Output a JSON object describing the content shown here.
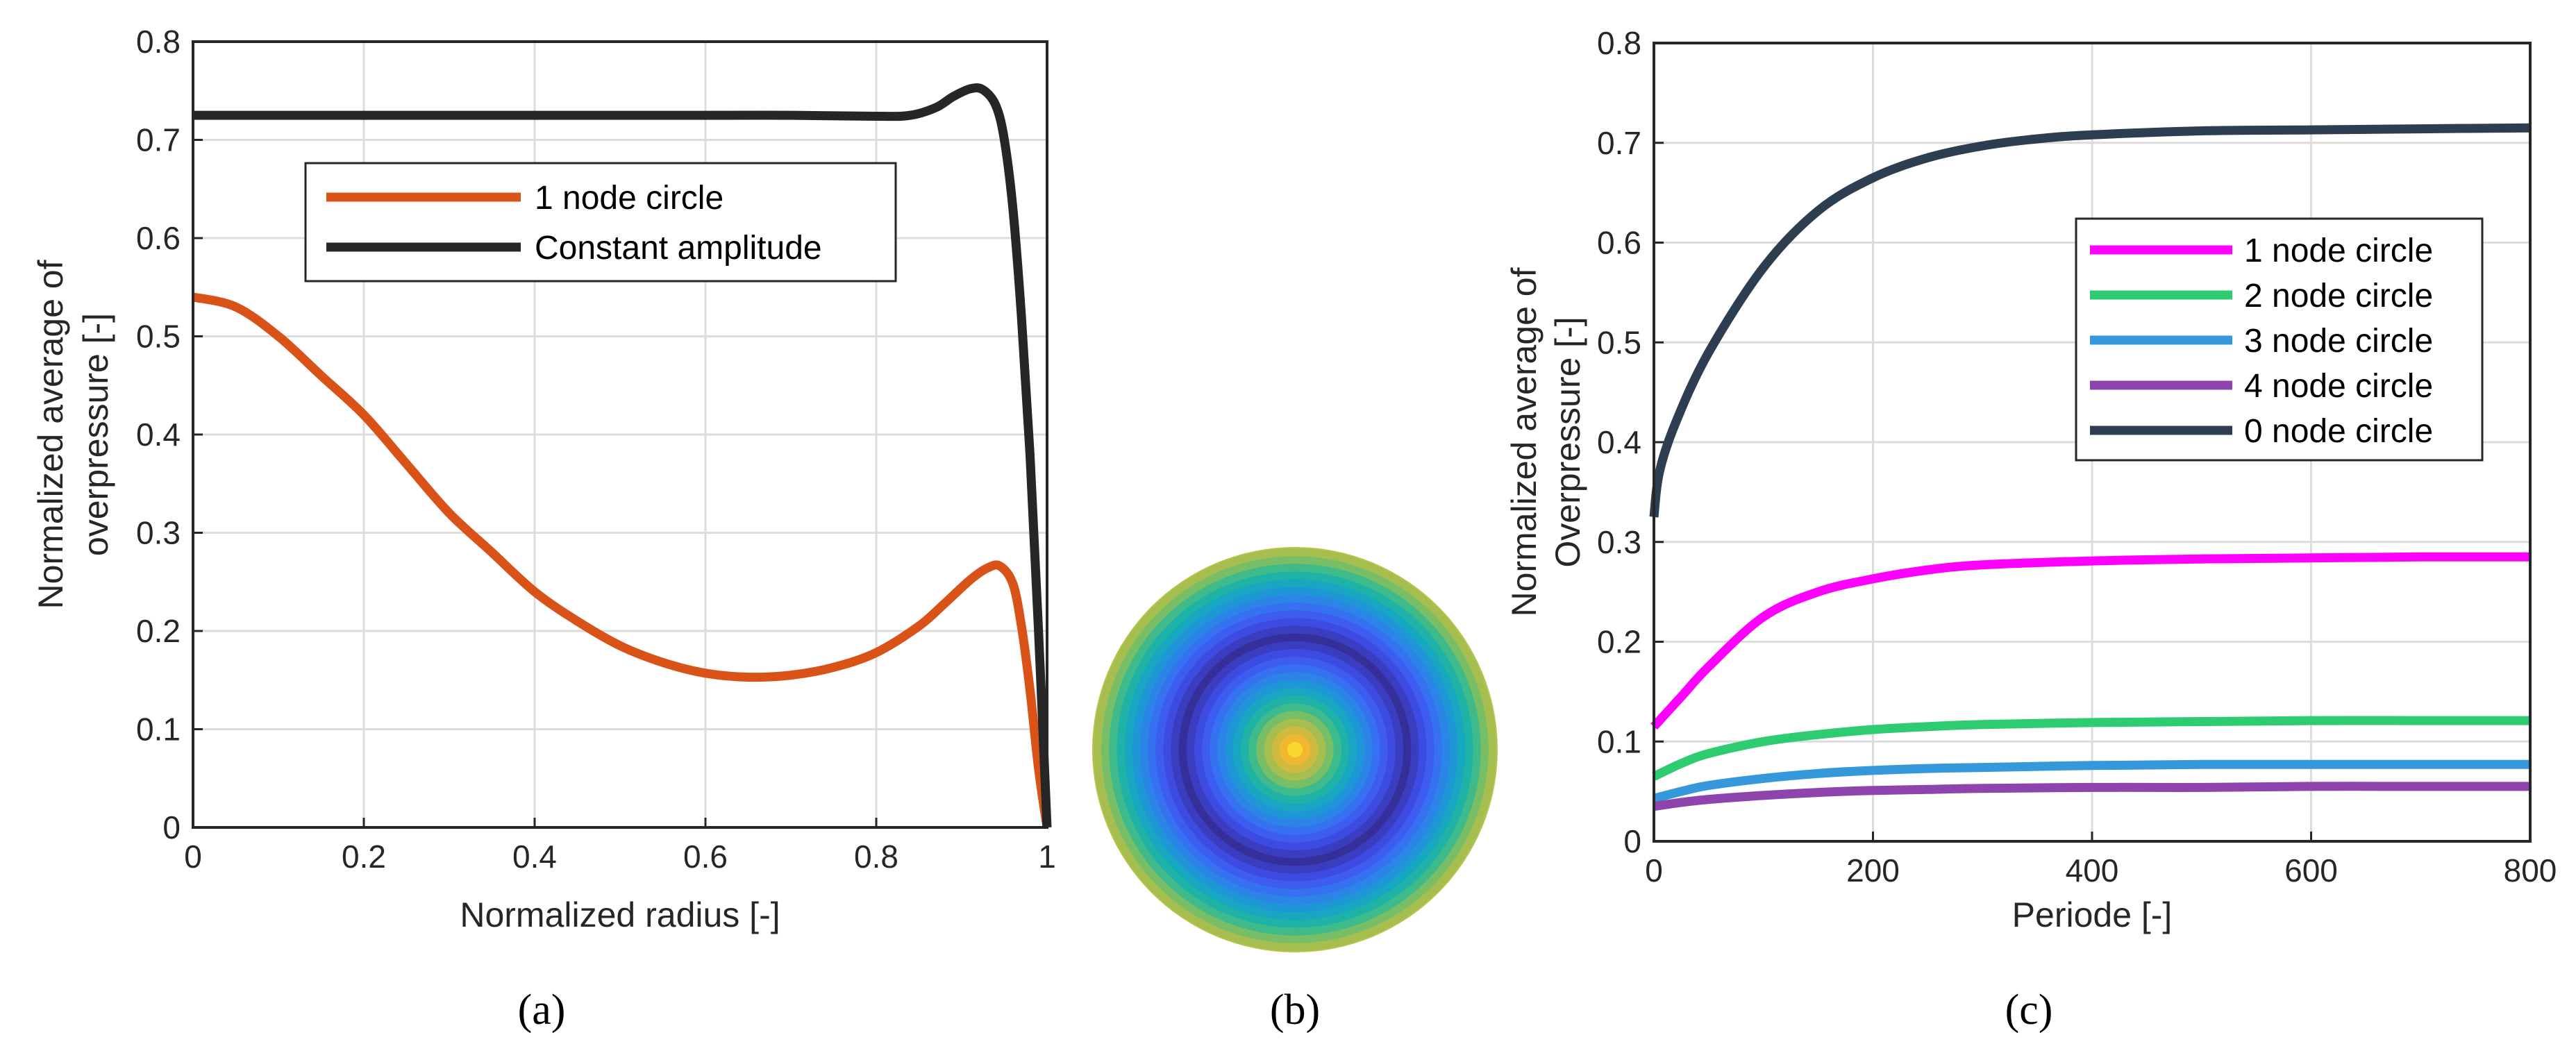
{
  "colors": {
    "one_node_a": "#D95319",
    "constant": "#262626",
    "one_node_c": "#FF00FF",
    "two_node": "#2ECC71",
    "three_node": "#3498DB",
    "four_node": "#8E44AD",
    "zero_node": "#2C3E50"
  },
  "panel_labels": [
    "(a)",
    "(b)",
    "(c)"
  ],
  "chart_data": [
    {
      "type": "line",
      "xlabel": "Normalized radius [-]",
      "ylabel_lines": [
        "Normalized average of",
        "overpressure [-]"
      ],
      "xlim": [
        0,
        1
      ],
      "ylim": [
        0,
        0.8
      ],
      "xticks": [
        "0",
        "0.2",
        "0.4",
        "0.6",
        "0.8",
        "1"
      ],
      "yticks": [
        "0",
        "0.1",
        "0.2",
        "0.3",
        "0.4",
        "0.5",
        "0.6",
        "0.7",
        "0.8"
      ],
      "grid": true,
      "legend_position": "upper-center",
      "series": [
        {
          "name": "1 node circle",
          "color": "#D95319",
          "x": [
            0,
            0.05,
            0.1,
            0.15,
            0.2,
            0.25,
            0.3,
            0.35,
            0.4,
            0.45,
            0.5,
            0.55,
            0.6,
            0.65,
            0.7,
            0.75,
            0.8,
            0.85,
            0.88,
            0.91,
            0.93,
            0.945,
            0.96,
            0.97,
            0.98,
            0.99,
            1.0
          ],
          "y": [
            0.54,
            0.53,
            0.5,
            0.46,
            0.42,
            0.37,
            0.32,
            0.28,
            0.24,
            0.21,
            0.185,
            0.168,
            0.157,
            0.153,
            0.155,
            0.163,
            0.178,
            0.205,
            0.228,
            0.252,
            0.264,
            0.266,
            0.248,
            0.205,
            0.14,
            0.06,
            0.0
          ]
        },
        {
          "name": "Constant amplitude",
          "color": "#262626",
          "x": [
            0,
            0.2,
            0.4,
            0.6,
            0.7,
            0.8,
            0.84,
            0.87,
            0.89,
            0.91,
            0.925,
            0.94,
            0.95,
            0.96,
            0.97,
            0.98,
            0.99,
            1.0
          ],
          "y": [
            0.725,
            0.725,
            0.725,
            0.725,
            0.725,
            0.724,
            0.725,
            0.733,
            0.744,
            0.752,
            0.751,
            0.735,
            0.7,
            0.63,
            0.52,
            0.38,
            0.2,
            0.0
          ]
        }
      ]
    },
    {
      "type": "heatmap",
      "description_visible": "Circular contour map with concentric rings",
      "ring_colors": [
        "#F9D72C",
        "#F1B72E",
        "#CDBA3E",
        "#A6BE4F",
        "#78BE66",
        "#3FBA8A",
        "#1FB3A8",
        "#17A7C1",
        "#1F97D6",
        "#2B85E6",
        "#3571F0",
        "#3C5DF0",
        "#3E4BE0",
        "#3A3DBF",
        "#352F9A",
        "#3A3DBF",
        "#3E4BE0",
        "#3C5DF0",
        "#3571F0",
        "#2B85E6",
        "#1F97D6",
        "#17A7C1",
        "#1FB3A8",
        "#3FBA8A",
        "#78BE66",
        "#A6BE4F"
      ]
    },
    {
      "type": "line",
      "xlabel": "Periode [-]",
      "ylabel_lines": [
        "Normalized average of",
        "Overpressure [-]"
      ],
      "xlim": [
        0,
        800
      ],
      "ylim": [
        0,
        0.8
      ],
      "xticks": [
        "0",
        "200",
        "400",
        "600",
        "800"
      ],
      "yticks": [
        "0",
        "0.1",
        "0.2",
        "0.3",
        "0.4",
        "0.5",
        "0.6",
        "0.7",
        "0.8"
      ],
      "grid": true,
      "legend_position": "right",
      "series": [
        {
          "name": "1 node circle",
          "color": "#FF00FF",
          "x": [
            0,
            25,
            50,
            100,
            150,
            200,
            250,
            300,
            400,
            500,
            600,
            700,
            800
          ],
          "y": [
            0.115,
            0.145,
            0.175,
            0.225,
            0.25,
            0.263,
            0.272,
            0.277,
            0.281,
            0.283,
            0.284,
            0.285,
            0.285
          ]
        },
        {
          "name": "2 node circle",
          "color": "#2ECC71",
          "x": [
            0,
            25,
            50,
            100,
            150,
            200,
            250,
            300,
            400,
            500,
            600,
            700,
            800
          ],
          "y": [
            0.065,
            0.078,
            0.088,
            0.1,
            0.107,
            0.112,
            0.115,
            0.117,
            0.119,
            0.12,
            0.121,
            0.121,
            0.121
          ]
        },
        {
          "name": "3 node circle",
          "color": "#3498DB",
          "x": [
            0,
            25,
            50,
            100,
            150,
            200,
            250,
            300,
            400,
            500,
            600,
            700,
            800
          ],
          "y": [
            0.043,
            0.05,
            0.056,
            0.063,
            0.068,
            0.071,
            0.073,
            0.074,
            0.076,
            0.077,
            0.077,
            0.077,
            0.077
          ]
        },
        {
          "name": "4 node circle",
          "color": "#8E44AD",
          "x": [
            0,
            25,
            50,
            100,
            150,
            200,
            250,
            300,
            400,
            500,
            600,
            700,
            800
          ],
          "y": [
            0.035,
            0.039,
            0.042,
            0.046,
            0.049,
            0.051,
            0.052,
            0.053,
            0.054,
            0.054,
            0.055,
            0.055,
            0.055
          ]
        },
        {
          "name": "0 node circle",
          "color": "#2C3E50",
          "x": [
            0,
            5,
            20,
            50,
            100,
            150,
            200,
            250,
            300,
            350,
            400,
            500,
            600,
            700,
            800
          ],
          "y": [
            0.325,
            0.37,
            0.42,
            0.49,
            0.575,
            0.632,
            0.665,
            0.685,
            0.697,
            0.704,
            0.708,
            0.712,
            0.713,
            0.714,
            0.715
          ]
        }
      ]
    }
  ]
}
